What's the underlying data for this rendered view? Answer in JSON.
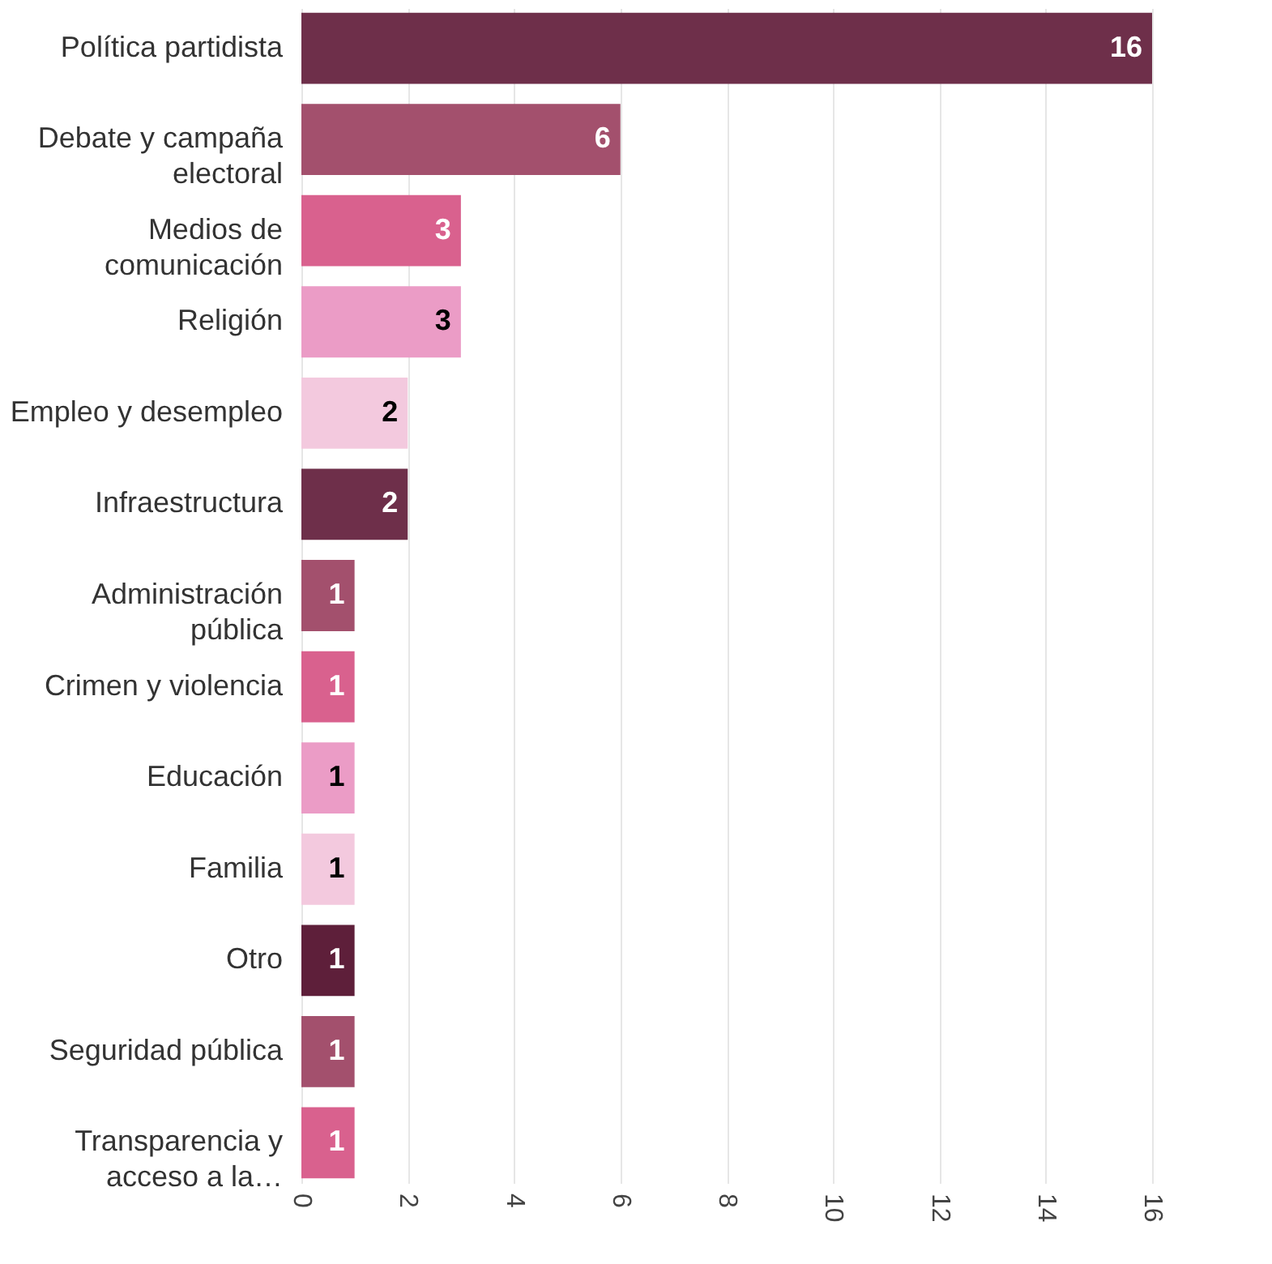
{
  "chart_data": {
    "type": "bar",
    "orientation": "horizontal",
    "categories": [
      "Política partidista",
      "Debate y campaña\nelectoral",
      "Medios de\ncomunicación",
      "Religión",
      "Empleo y desempleo",
      "Infraestructura",
      "Administración\npública",
      "Crimen y violencia",
      "Educación",
      "Familia",
      "Otro",
      "Seguridad pública",
      "Transparencia y\nacceso a la…"
    ],
    "values": [
      16,
      6,
      3,
      3,
      2,
      2,
      1,
      1,
      1,
      1,
      1,
      1,
      1
    ],
    "colors": [
      "#6e2f4a",
      "#a3506d",
      "#d9618e",
      "#eb9cc6",
      "#f3c9de",
      "#6e2f4a",
      "#a3506d",
      "#d9618e",
      "#eb9cc6",
      "#f3c9de",
      "#5e1f3a",
      "#a3506d",
      "#d9618e"
    ],
    "xlim": [
      0,
      16
    ],
    "xticks": [
      0,
      2,
      4,
      6,
      8,
      10,
      12,
      14,
      16
    ],
    "grid": "x",
    "data_labels": true
  }
}
